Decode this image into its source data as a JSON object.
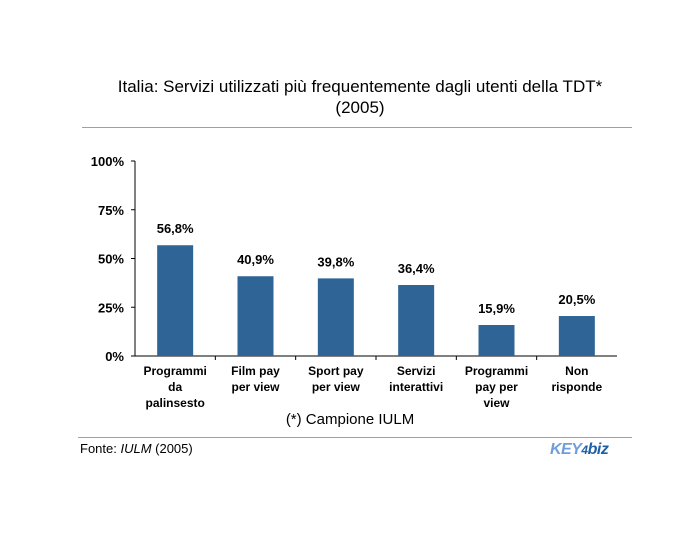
{
  "chart_data": {
    "type": "bar",
    "title_lines": [
      "Italia: Servizi utilizzati più frequentemente dagli utenti della TDT*",
      "(2005)"
    ],
    "categories": [
      [
        "Programmi",
        "da",
        "palinsesto"
      ],
      [
        "Film pay",
        "per view"
      ],
      [
        "Sport pay",
        "per view"
      ],
      [
        "Servizi",
        "interattivi"
      ],
      [
        "Programmi",
        "pay per",
        "view"
      ],
      [
        "Non",
        "risponde"
      ]
    ],
    "values": [
      56.8,
      40.9,
      39.8,
      36.4,
      15.9,
      20.5
    ],
    "value_labels": [
      "56,8%",
      "40,9%",
      "39,8%",
      "36,4%",
      "15,9%",
      "20,5%"
    ],
    "y_ticks": [
      "0%",
      "25%",
      "50%",
      "75%",
      "100%"
    ],
    "ylim": [
      0,
      100
    ],
    "bar_color": "#2e6496",
    "grid": false
  },
  "note": "(*) Campione IULM",
  "source": {
    "prefix": "Fonte: ",
    "name": "IULM",
    "suffix": " (2005)"
  },
  "logo": {
    "key": "KEY",
    "four": "4",
    "biz": "biz"
  }
}
